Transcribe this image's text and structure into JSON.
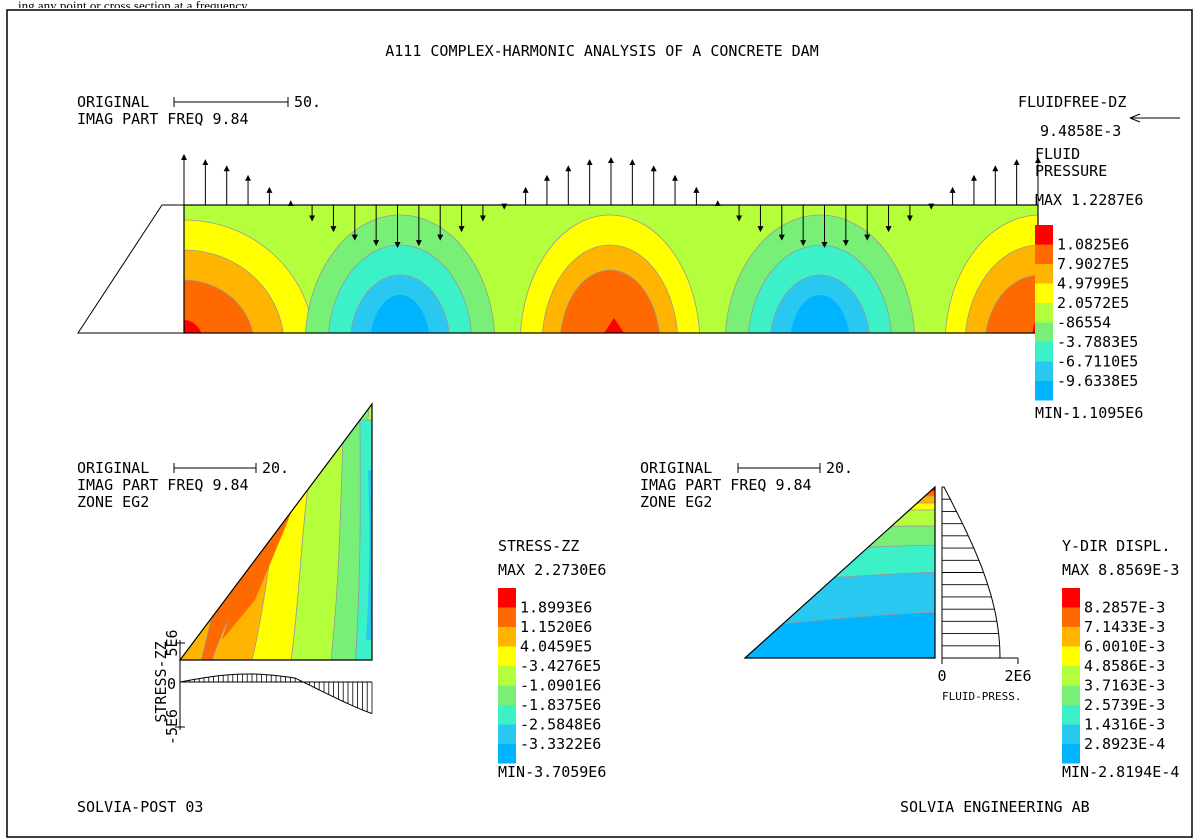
{
  "header_fragment": "ing any point or cross section at a frequency",
  "title": "A111 COMPLEX-HARMONIC ANALYSIS OF A CONCRETE DAM",
  "top_plot": {
    "original_label": "ORIGINAL",
    "scale_value": "50.",
    "freq_label": "IMAG PART FREQ 9.84",
    "fluidfree_label": "FLUIDFREE-DZ",
    "fluidfree_value": "9.4858E-3",
    "legend": {
      "title1": "FLUID",
      "title2": "PRESSURE",
      "max": "MAX 1.2287E6",
      "min": "MIN-1.1095E6",
      "levels": [
        "1.0825E6",
        "7.9027E5",
        "4.9799E5",
        "2.0572E5",
        "-86554",
        "-3.7883E5",
        "-6.7110E5",
        "-9.6338E5"
      ],
      "colors": [
        "#ff0000",
        "#ff6a00",
        "#ffb400",
        "#ffff00",
        "#b4ff3c",
        "#78f078",
        "#3cf0c8",
        "#28c8f0",
        "#00b4ff"
      ]
    }
  },
  "left_plot": {
    "original_label": "ORIGINAL",
    "scale_value": "20.",
    "freq_label": "IMAG PART FREQ 9.84",
    "zone_label": "ZONE EG2",
    "axis_label": "STRESS-ZZ",
    "axis_ticks": [
      "5E6",
      "0",
      "-5E6"
    ],
    "legend": {
      "title": "STRESS-ZZ",
      "max": "MAX 2.2730E6",
      "min": "MIN-3.7059E6",
      "levels": [
        "1.8993E6",
        "1.1520E6",
        "4.0459E5",
        "-3.4276E5",
        "-1.0901E6",
        "-1.8375E6",
        "-2.5848E6",
        "-3.3322E6"
      ],
      "colors": [
        "#ff0000",
        "#ff6a00",
        "#ffb400",
        "#ffff00",
        "#b4ff3c",
        "#78f078",
        "#3cf0c8",
        "#28c8f0",
        "#00b4ff"
      ]
    }
  },
  "right_plot": {
    "original_label": "ORIGINAL",
    "scale_value": "20.",
    "freq_label": "IMAG PART FREQ 9.84",
    "zone_label": "ZONE EG2",
    "axis_ticks": [
      "0",
      "2E6"
    ],
    "axis_label": "FLUID-PRESS.",
    "legend": {
      "title": "Y-DIR DISPL.",
      "max": "MAX 8.8569E-3",
      "min": "MIN-2.8194E-4",
      "levels": [
        "8.2857E-3",
        "7.1433E-3",
        "6.0010E-3",
        "4.8586E-3",
        "3.7163E-3",
        "2.5739E-3",
        "1.4316E-3",
        "2.8923E-4"
      ],
      "colors": [
        "#ff0000",
        "#ff6a00",
        "#ffb400",
        "#ffff00",
        "#b4ff3c",
        "#78f078",
        "#3cf0c8",
        "#28c8f0",
        "#00b4ff"
      ]
    }
  },
  "footer_left": "SOLVIA-POST 03",
  "footer_right": "SOLVIA ENGINEERING AB"
}
